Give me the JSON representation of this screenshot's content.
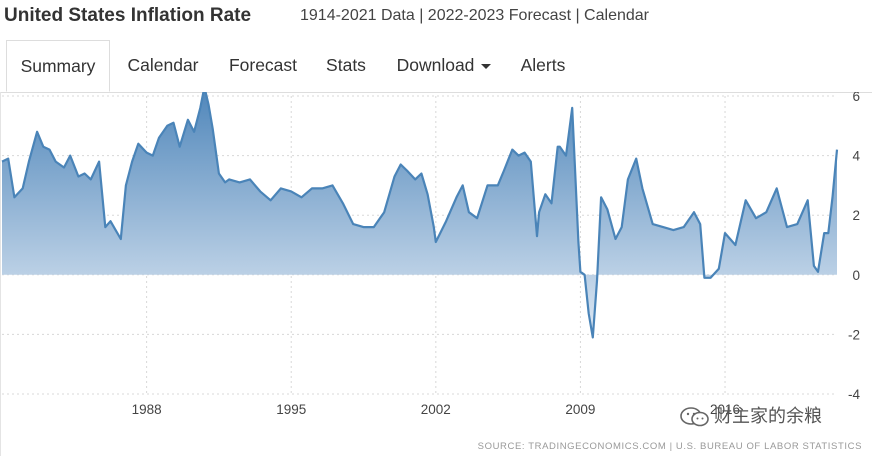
{
  "header": {
    "title": "United States Inflation Rate",
    "subtitle": "1914-2021 Data | 2022-2023 Forecast | Calendar"
  },
  "tabs": [
    {
      "label": "Summary",
      "active": true
    },
    {
      "label": "Calendar"
    },
    {
      "label": "Forecast"
    },
    {
      "label": "Stats"
    },
    {
      "label": "Download",
      "has_dropdown": true
    },
    {
      "label": "Alerts"
    }
  ],
  "chart_data": {
    "type": "area",
    "title": "",
    "xlabel": "",
    "ylabel": "",
    "x_ticks": [
      "1988",
      "1995",
      "2002",
      "2009",
      "2016"
    ],
    "y_ticks": [
      "6",
      "4",
      "2",
      "0",
      "-2",
      "-4"
    ],
    "xlim": [
      1981.0,
      2021.42
    ],
    "ylim": [
      -4,
      6
    ],
    "grid": "vertical and horizontal dashed",
    "colors": {
      "line": "#4a84b8",
      "fill_top": "#4f86ba",
      "fill_bottom": "#ffffff"
    },
    "series": [
      {
        "x": [
          1981.0,
          1981.3,
          1981.6,
          1982.0,
          1982.3,
          1982.7,
          1983.0,
          1983.3,
          1983.6,
          1984.0,
          1984.3,
          1984.7,
          1985.0,
          1985.3,
          1985.7,
          1986.0,
          1986.25,
          1986.5,
          1986.75,
          1987.0,
          1987.3,
          1987.6,
          1988.0,
          1988.3,
          1988.6,
          1989.0,
          1989.3,
          1989.6,
          1990.0,
          1990.3,
          1990.6,
          1990.8,
          1991.0,
          1991.2,
          1991.5,
          1991.8,
          1992.0,
          1992.5,
          1993.0,
          1993.5,
          1994.0,
          1994.5,
          1995.0,
          1995.5,
          1996.0,
          1996.5,
          1997.0,
          1997.5,
          1998.0,
          1998.5,
          1999.0,
          1999.5,
          2000.0,
          2000.3,
          2000.6,
          2001.0,
          2001.3,
          2001.6,
          2001.9,
          2002.0,
          2002.5,
          2003.0,
          2003.3,
          2003.6,
          2004.0,
          2004.5,
          2005.0,
          2005.3,
          2005.7,
          2006.0,
          2006.3,
          2006.6,
          2006.9,
          2007.0,
          2007.3,
          2007.6,
          2007.9,
          2008.0,
          2008.3,
          2008.6,
          2008.9,
          2009.0,
          2009.2,
          2009.4,
          2009.6,
          2009.8,
          2010.0,
          2010.3,
          2010.7,
          2011.0,
          2011.3,
          2011.7,
          2012.0,
          2012.5,
          2013.0,
          2013.5,
          2014.0,
          2014.5,
          2014.8,
          2015.0,
          2015.3,
          2015.7,
          2016.0,
          2016.5,
          2017.0,
          2017.5,
          2018.0,
          2018.5,
          2019.0,
          2019.5,
          2020.0,
          2020.3,
          2020.5,
          2020.8,
          2021.0,
          2021.2,
          2021.42
        ],
        "values": [
          3.8,
          3.9,
          2.6,
          2.9,
          3.8,
          4.8,
          4.3,
          4.2,
          3.8,
          3.6,
          4.0,
          3.3,
          3.4,
          3.2,
          3.8,
          1.6,
          1.8,
          1.5,
          1.2,
          3.0,
          3.8,
          4.4,
          4.1,
          4.0,
          4.6,
          5.0,
          5.1,
          4.3,
          5.2,
          4.8,
          5.6,
          6.3,
          5.7,
          4.9,
          3.4,
          3.1,
          3.2,
          3.1,
          3.2,
          2.8,
          2.5,
          2.9,
          2.8,
          2.6,
          2.9,
          2.9,
          3.0,
          2.4,
          1.7,
          1.6,
          1.6,
          2.1,
          3.3,
          3.7,
          3.5,
          3.2,
          3.4,
          2.7,
          1.6,
          1.1,
          1.8,
          2.6,
          3.0,
          2.1,
          1.9,
          3.0,
          3.0,
          3.5,
          4.2,
          4.0,
          4.1,
          3.8,
          1.3,
          2.1,
          2.7,
          2.4,
          4.3,
          4.3,
          4.0,
          5.6,
          1.1,
          0.1,
          0.0,
          -1.3,
          -2.1,
          -0.2,
          2.6,
          2.2,
          1.2,
          1.6,
          3.2,
          3.9,
          2.9,
          1.7,
          1.6,
          1.5,
          1.6,
          2.1,
          1.7,
          -0.1,
          -0.1,
          0.2,
          1.4,
          1.0,
          2.5,
          1.9,
          2.1,
          2.9,
          1.6,
          1.7,
          2.5,
          0.3,
          0.1,
          1.4,
          1.4,
          2.6,
          4.2
        ]
      }
    ]
  },
  "source": "SOURCE: TRADINGECONOMICS.COM | U.S. BUREAU OF LABOR STATISTICS",
  "watermark": "财主家的余粮"
}
